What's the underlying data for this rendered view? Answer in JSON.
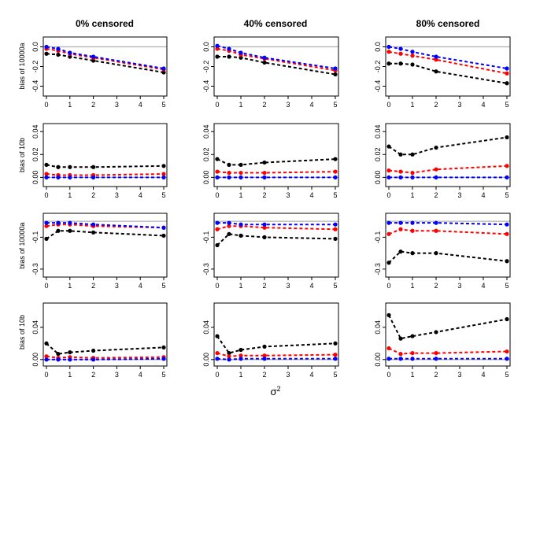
{
  "chart_data": {
    "type": "line",
    "x": [
      0,
      0.5,
      1,
      2,
      5
    ],
    "x_label": "σ",
    "x_label_sup": "2",
    "x_ticks": [
      0,
      1,
      2,
      3,
      4,
      5
    ],
    "xlim": [
      0,
      5
    ],
    "columns": [
      "0% censored",
      "40% censored",
      "80% censored"
    ],
    "series_colors": {
      "black": "#000000",
      "red": "#ff0000",
      "blue": "#0000ff"
    },
    "reference_line_color": "#b0b0b0",
    "rows": [
      {
        "ylabel": "bias of 10000a",
        "yticks": [
          0.0,
          -0.2,
          -0.4
        ],
        "tick_labels": [
          "0.0",
          "-0.2",
          "-0.4"
        ],
        "ylim": [
          -0.5,
          0.1
        ],
        "panels": [
          {
            "series": [
              {
                "name": "black",
                "values": [
                  -0.07,
                  -0.08,
                  -0.1,
                  -0.14,
                  -0.26
                ]
              },
              {
                "name": "red",
                "values": [
                  -0.02,
                  -0.04,
                  -0.07,
                  -0.11,
                  -0.23
                ]
              },
              {
                "name": "blue",
                "values": [
                  0.0,
                  -0.02,
                  -0.06,
                  -0.1,
                  -0.22
                ]
              }
            ]
          },
          {
            "series": [
              {
                "name": "black",
                "values": [
                  -0.1,
                  -0.1,
                  -0.11,
                  -0.16,
                  -0.28
                ]
              },
              {
                "name": "red",
                "values": [
                  -0.02,
                  -0.04,
                  -0.08,
                  -0.12,
                  -0.24
                ]
              },
              {
                "name": "blue",
                "values": [
                  0.01,
                  -0.02,
                  -0.06,
                  -0.11,
                  -0.22
                ]
              }
            ]
          },
          {
            "series": [
              {
                "name": "black",
                "values": [
                  -0.17,
                  -0.17,
                  -0.18,
                  -0.25,
                  -0.37
                ]
              },
              {
                "name": "red",
                "values": [
                  -0.05,
                  -0.07,
                  -0.09,
                  -0.13,
                  -0.27
                ]
              },
              {
                "name": "blue",
                "values": [
                  0.0,
                  -0.02,
                  -0.05,
                  -0.1,
                  -0.22
                ]
              }
            ]
          }
        ]
      },
      {
        "ylabel": "bias of 10b",
        "yticks": [
          0.0,
          0.02,
          0.04
        ],
        "tick_labels": [
          "0.00",
          "0.02",
          "0.04"
        ],
        "ylim": [
          -0.008,
          0.047
        ],
        "panels": [
          {
            "series": [
              {
                "name": "black",
                "values": [
                  0.011,
                  0.009,
                  0.009,
                  0.009,
                  0.01
                ]
              },
              {
                "name": "red",
                "values": [
                  0.003,
                  0.002,
                  0.002,
                  0.002,
                  0.003
                ]
              },
              {
                "name": "blue",
                "values": [
                  0.0,
                  0.0,
                  0.0,
                  0.0,
                  0.0
                ]
              }
            ]
          },
          {
            "series": [
              {
                "name": "black",
                "values": [
                  0.016,
                  0.011,
                  0.011,
                  0.013,
                  0.016
                ]
              },
              {
                "name": "red",
                "values": [
                  0.005,
                  0.004,
                  0.004,
                  0.004,
                  0.005
                ]
              },
              {
                "name": "blue",
                "values": [
                  0.0,
                  0.0,
                  0.0,
                  0.0,
                  0.0
                ]
              }
            ]
          },
          {
            "series": [
              {
                "name": "black",
                "values": [
                  0.027,
                  0.02,
                  0.02,
                  0.026,
                  0.035
                ]
              },
              {
                "name": "red",
                "values": [
                  0.006,
                  0.005,
                  0.004,
                  0.007,
                  0.01
                ]
              },
              {
                "name": "blue",
                "values": [
                  0.0,
                  0.0,
                  0.0,
                  0.0,
                  0.0
                ]
              }
            ]
          }
        ]
      },
      {
        "ylabel": "bias of 10000a",
        "yticks": [
          -0.1,
          -0.3
        ],
        "tick_labels": [
          "-0.1",
          "-0.3"
        ],
        "ylim": [
          -0.35,
          0.05
        ],
        "panels": [
          {
            "series": [
              {
                "name": "black",
                "values": [
                  -0.11,
                  -0.06,
                  -0.06,
                  -0.07,
                  -0.09
                ]
              },
              {
                "name": "red",
                "values": [
                  -0.03,
                  -0.02,
                  -0.02,
                  -0.03,
                  -0.04
                ]
              },
              {
                "name": "blue",
                "values": [
                  -0.01,
                  -0.01,
                  -0.01,
                  -0.02,
                  -0.04
                ]
              }
            ]
          },
          {
            "series": [
              {
                "name": "black",
                "values": [
                  -0.15,
                  -0.08,
                  -0.09,
                  -0.1,
                  -0.11
                ]
              },
              {
                "name": "red",
                "values": [
                  -0.05,
                  -0.03,
                  -0.03,
                  -0.04,
                  -0.05
                ]
              },
              {
                "name": "blue",
                "values": [
                  -0.01,
                  -0.01,
                  -0.02,
                  -0.02,
                  -0.02
                ]
              }
            ]
          },
          {
            "series": [
              {
                "name": "black",
                "values": [
                  -0.26,
                  -0.19,
                  -0.2,
                  -0.2,
                  -0.25
                ]
              },
              {
                "name": "red",
                "values": [
                  -0.08,
                  -0.05,
                  -0.06,
                  -0.06,
                  -0.08
                ]
              },
              {
                "name": "blue",
                "values": [
                  -0.01,
                  -0.01,
                  -0.01,
                  -0.01,
                  -0.02
                ]
              }
            ]
          }
        ]
      },
      {
        "ylabel": "bias of 10b",
        "yticks": [
          0.0,
          0.04
        ],
        "tick_labels": [
          "0.00",
          "0.04"
        ],
        "ylim": [
          -0.008,
          0.07
        ],
        "panels": [
          {
            "series": [
              {
                "name": "black",
                "values": [
                  0.02,
                  0.007,
                  0.009,
                  0.011,
                  0.015
                ]
              },
              {
                "name": "red",
                "values": [
                  0.004,
                  0.002,
                  0.003,
                  0.002,
                  0.003
                ]
              },
              {
                "name": "blue",
                "values": [
                  0.0,
                  0.0,
                  0.0,
                  0.0,
                  0.001
                ]
              }
            ]
          },
          {
            "series": [
              {
                "name": "black",
                "values": [
                  0.029,
                  0.008,
                  0.012,
                  0.016,
                  0.02
                ]
              },
              {
                "name": "red",
                "values": [
                  0.008,
                  0.004,
                  0.005,
                  0.005,
                  0.006
                ]
              },
              {
                "name": "blue",
                "values": [
                  0.001,
                  0.0,
                  0.001,
                  0.001,
                  0.001
                ]
              }
            ]
          },
          {
            "series": [
              {
                "name": "black",
                "values": [
                  0.055,
                  0.026,
                  0.029,
                  0.034,
                  0.05
                ]
              },
              {
                "name": "red",
                "values": [
                  0.014,
                  0.007,
                  0.008,
                  0.008,
                  0.01
                ]
              },
              {
                "name": "blue",
                "values": [
                  0.001,
                  0.001,
                  0.001,
                  0.001,
                  0.001
                ]
              }
            ]
          }
        ]
      }
    ]
  }
}
